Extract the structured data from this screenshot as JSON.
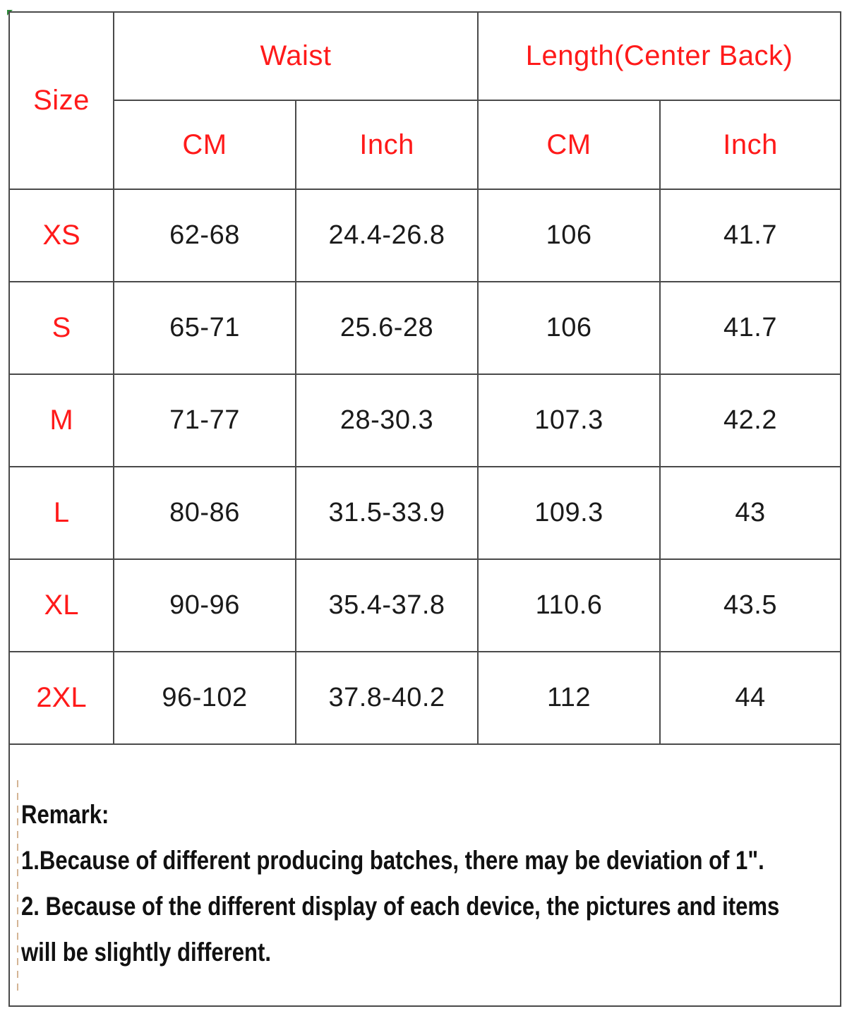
{
  "header": {
    "size_label": "Size",
    "waist_label": "Waist",
    "length_label": "Length(Center Back)",
    "unit_cm": "CM",
    "unit_inch": "Inch"
  },
  "rows": [
    {
      "size": "XS",
      "waist_cm": "62-68",
      "waist_inch": "24.4-26.8",
      "length_cm": "106",
      "length_inch": "41.7"
    },
    {
      "size": "S",
      "waist_cm": "65-71",
      "waist_inch": "25.6-28",
      "length_cm": "106",
      "length_inch": "41.7"
    },
    {
      "size": "M",
      "waist_cm": "71-77",
      "waist_inch": "28-30.3",
      "length_cm": "107.3",
      "length_inch": "42.2"
    },
    {
      "size": "L",
      "waist_cm": "80-86",
      "waist_inch": "31.5-33.9",
      "length_cm": "109.3",
      "length_inch": "43"
    },
    {
      "size": "XL",
      "waist_cm": "90-96",
      "waist_inch": "35.4-37.8",
      "length_cm": "110.6",
      "length_inch": "43.5"
    },
    {
      "size": "2XL",
      "waist_cm": "96-102",
      "waist_inch": "37.8-40.2",
      "length_cm": "112",
      "length_inch": "44"
    }
  ],
  "remark": {
    "title": "Remark:",
    "line1": "1.Because of different producing batches, there may be deviation of 1\".",
    "line2": "2. Because of the different display of each device, the pictures and items",
    "line3": "will be slightly different."
  },
  "colors": {
    "header_text": "#ff1a1a",
    "value_text": "#1a1a1a",
    "border": "#4a4a4a"
  }
}
